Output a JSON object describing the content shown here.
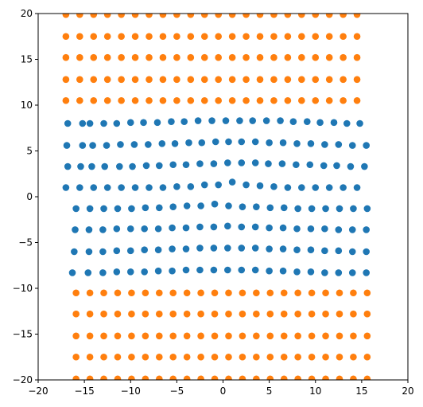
{
  "chart_data": {
    "type": "scatter",
    "title": "",
    "xlabel": "",
    "ylabel": "",
    "xlim": [
      -20,
      20
    ],
    "ylim": [
      -20,
      20
    ],
    "x_ticks": [
      -20,
      -15,
      -10,
      -5,
      0,
      5,
      10,
      15,
      20
    ],
    "y_ticks": [
      -20,
      -15,
      -10,
      -5,
      0,
      5,
      10,
      15,
      20
    ],
    "x_tick_labels": [
      "−20",
      "−15",
      "−10",
      "−5",
      "0",
      "5",
      "10",
      "15",
      "20"
    ],
    "y_tick_labels": [
      "−20",
      "−15",
      "−10",
      "−5",
      "0",
      "5",
      "10",
      "15",
      "20"
    ],
    "grid": false,
    "legend": "none",
    "series": [
      {
        "color": "#1f77b4",
        "rows": [
          {
            "x": [
              -16.8,
              -15.2,
              -14.4,
              -12.9,
              -11.5,
              -10.0,
              -8.6,
              -7.1,
              -5.6,
              -4.2,
              -2.7,
              -1.2,
              0.3,
              1.8,
              3.2,
              4.7,
              6.2,
              7.6,
              9.1,
              10.5,
              12.0,
              13.4,
              14.8
            ],
            "y": [
              8.0,
              8.0,
              8.0,
              8.0,
              8.0,
              8.1,
              8.1,
              8.1,
              8.2,
              8.2,
              8.3,
              8.3,
              8.3,
              8.3,
              8.3,
              8.3,
              8.3,
              8.2,
              8.2,
              8.1,
              8.1,
              8.0,
              8.0
            ]
          },
          {
            "x": [
              -16.9,
              -15.2,
              -14.1,
              -12.6,
              -11.1,
              -9.6,
              -8.1,
              -6.6,
              -5.2,
              -3.7,
              -2.3,
              -0.8,
              0.6,
              2.0,
              3.5,
              5.0,
              6.5,
              8.0,
              9.5,
              11.0,
              12.5,
              14.0,
              15.5
            ],
            "y": [
              5.6,
              5.6,
              5.6,
              5.6,
              5.7,
              5.7,
              5.7,
              5.8,
              5.8,
              5.9,
              5.9,
              6.0,
              6.0,
              6.0,
              6.0,
              5.9,
              5.9,
              5.8,
              5.8,
              5.7,
              5.7,
              5.6,
              5.6
            ]
          },
          {
            "x": [
              -16.8,
              -15.4,
              -14.2,
              -12.8,
              -11.2,
              -9.8,
              -8.3,
              -6.9,
              -5.4,
              -4.0,
              -2.5,
              -1.0,
              0.5,
              2.0,
              3.5,
              4.9,
              6.4,
              7.9,
              9.4,
              10.9,
              12.3,
              13.8,
              15.3
            ],
            "y": [
              3.3,
              3.3,
              3.3,
              3.3,
              3.3,
              3.3,
              3.4,
              3.4,
              3.5,
              3.5,
              3.6,
              3.6,
              3.7,
              3.7,
              3.7,
              3.6,
              3.6,
              3.5,
              3.5,
              3.4,
              3.4,
              3.3,
              3.3
            ]
          },
          {
            "x": [
              -17.0,
              -15.5,
              -14.0,
              -12.5,
              -11.0,
              -9.5,
              -8.0,
              -6.5,
              -5.0,
              -3.5,
              -2.0,
              -0.5,
              1.0,
              2.5,
              4.0,
              5.5,
              7.0,
              8.5,
              10.0,
              11.5,
              13.0,
              14.5
            ],
            "y": [
              1.0,
              1.0,
              1.0,
              1.0,
              1.0,
              1.0,
              1.0,
              1.0,
              1.1,
              1.1,
              1.3,
              1.3,
              1.6,
              1.3,
              1.2,
              1.1,
              1.0,
              1.0,
              1.0,
              1.0,
              1.0,
              1.0
            ]
          },
          {
            "x": [
              -15.9,
              -14.4,
              -12.9,
              -11.4,
              -9.9,
              -8.4,
              -6.9,
              -5.4,
              -3.9,
              -2.4,
              -0.9,
              0.6,
              2.1,
              3.6,
              5.1,
              6.6,
              8.1,
              9.6,
              11.1,
              12.6,
              14.1,
              15.6
            ],
            "y": [
              -1.3,
              -1.3,
              -1.3,
              -1.3,
              -1.3,
              -1.2,
              -1.2,
              -1.1,
              -1.0,
              -1.0,
              -0.8,
              -1.0,
              -1.1,
              -1.1,
              -1.2,
              -1.2,
              -1.3,
              -1.3,
              -1.3,
              -1.3,
              -1.3,
              -1.3
            ]
          },
          {
            "x": [
              -16.0,
              -14.5,
              -13.0,
              -11.5,
              -10.0,
              -8.5,
              -7.0,
              -5.5,
              -4.0,
              -2.5,
              -1.0,
              0.5,
              2.0,
              3.5,
              5.0,
              6.5,
              8.0,
              9.5,
              11.0,
              12.5,
              14.0,
              15.5
            ],
            "y": [
              -3.6,
              -3.6,
              -3.6,
              -3.5,
              -3.5,
              -3.5,
              -3.5,
              -3.4,
              -3.4,
              -3.3,
              -3.3,
              -3.2,
              -3.3,
              -3.3,
              -3.4,
              -3.4,
              -3.5,
              -3.5,
              -3.5,
              -3.6,
              -3.6,
              -3.6
            ]
          },
          {
            "x": [
              -16.1,
              -14.5,
              -13.0,
              -11.5,
              -10.0,
              -8.5,
              -7.0,
              -5.5,
              -4.0,
              -2.5,
              -1.0,
              0.5,
              2.0,
              3.5,
              5.0,
              6.5,
              8.0,
              9.5,
              11.0,
              12.5,
              14.0,
              15.5
            ],
            "y": [
              -6.0,
              -6.0,
              -6.0,
              -5.9,
              -5.9,
              -5.8,
              -5.8,
              -5.7,
              -5.7,
              -5.6,
              -5.6,
              -5.6,
              -5.6,
              -5.6,
              -5.7,
              -5.7,
              -5.8,
              -5.8,
              -5.9,
              -5.9,
              -6.0,
              -6.0
            ]
          },
          {
            "x": [
              -16.3,
              -14.6,
              -13.0,
              -11.5,
              -10.0,
              -8.5,
              -7.0,
              -5.5,
              -4.0,
              -2.5,
              -1.0,
              0.5,
              2.0,
              3.5,
              5.0,
              6.5,
              8.0,
              9.5,
              11.0,
              12.5,
              14.0,
              15.5
            ],
            "y": [
              -8.3,
              -8.3,
              -8.3,
              -8.2,
              -8.2,
              -8.2,
              -8.1,
              -8.1,
              -8.0,
              -8.0,
              -8.0,
              -8.0,
              -8.0,
              -8.0,
              -8.1,
              -8.1,
              -8.2,
              -8.2,
              -8.3,
              -8.3,
              -8.3,
              -8.3
            ]
          }
        ]
      },
      {
        "color": "#ff7f0e",
        "rows": [
          {
            "x": [
              -17.0,
              -15.5,
              -14.0,
              -12.5,
              -11.0,
              -9.5,
              -8.0,
              -6.5,
              -5.0,
              -3.5,
              -2.0,
              -0.5,
              1.0,
              2.5,
              4.0,
              5.5,
              7.0,
              8.5,
              10.0,
              11.5,
              13.0,
              14.5
            ],
            "y": [
              19.9,
              19.9,
              19.9,
              19.9,
              19.9,
              19.9,
              19.9,
              19.9,
              19.9,
              19.9,
              19.9,
              19.9,
              19.9,
              19.9,
              19.9,
              19.9,
              19.9,
              19.9,
              19.9,
              19.9,
              19.9,
              19.9
            ]
          },
          {
            "x": [
              -17.0,
              -15.5,
              -14.0,
              -12.5,
              -11.0,
              -9.5,
              -8.0,
              -6.5,
              -5.0,
              -3.5,
              -2.0,
              -0.5,
              1.0,
              2.5,
              4.0,
              5.5,
              7.0,
              8.5,
              10.0,
              11.5,
              13.0,
              14.5
            ],
            "y": [
              17.5,
              17.5,
              17.5,
              17.5,
              17.5,
              17.5,
              17.5,
              17.5,
              17.5,
              17.5,
              17.5,
              17.5,
              17.5,
              17.5,
              17.5,
              17.5,
              17.5,
              17.5,
              17.5,
              17.5,
              17.5,
              17.5
            ]
          },
          {
            "x": [
              -17.0,
              -15.5,
              -14.0,
              -12.5,
              -11.0,
              -9.5,
              -8.0,
              -6.5,
              -5.0,
              -3.5,
              -2.0,
              -0.5,
              1.0,
              2.5,
              4.0,
              5.5,
              7.0,
              8.5,
              10.0,
              11.5,
              13.0,
              14.5
            ],
            "y": [
              15.2,
              15.2,
              15.2,
              15.2,
              15.2,
              15.2,
              15.2,
              15.2,
              15.2,
              15.2,
              15.2,
              15.2,
              15.2,
              15.2,
              15.2,
              15.2,
              15.2,
              15.2,
              15.2,
              15.2,
              15.2,
              15.2
            ]
          },
          {
            "x": [
              -17.0,
              -15.5,
              -14.0,
              -12.5,
              -11.0,
              -9.5,
              -8.0,
              -6.5,
              -5.0,
              -3.5,
              -2.0,
              -0.5,
              1.0,
              2.5,
              4.0,
              5.5,
              7.0,
              8.5,
              10.0,
              11.5,
              13.0,
              14.5
            ],
            "y": [
              12.8,
              12.8,
              12.8,
              12.8,
              12.8,
              12.8,
              12.8,
              12.8,
              12.8,
              12.8,
              12.8,
              12.8,
              12.8,
              12.8,
              12.8,
              12.8,
              12.8,
              12.8,
              12.8,
              12.8,
              12.8,
              12.8
            ]
          },
          {
            "x": [
              -17.0,
              -15.5,
              -14.0,
              -12.5,
              -11.0,
              -9.5,
              -8.0,
              -6.5,
              -5.0,
              -3.5,
              -2.0,
              -0.5,
              1.0,
              2.5,
              4.0,
              5.5,
              7.0,
              8.5,
              10.0,
              11.5,
              13.0,
              14.5
            ],
            "y": [
              10.5,
              10.5,
              10.5,
              10.5,
              10.5,
              10.5,
              10.5,
              10.5,
              10.5,
              10.5,
              10.5,
              10.5,
              10.5,
              10.5,
              10.5,
              10.5,
              10.5,
              10.5,
              10.5,
              10.5,
              10.5,
              10.5
            ]
          },
          {
            "x": [
              -15.9,
              -14.4,
              -12.9,
              -11.4,
              -9.9,
              -8.4,
              -6.9,
              -5.4,
              -3.9,
              -2.4,
              -0.9,
              0.6,
              2.1,
              3.6,
              5.1,
              6.6,
              8.1,
              9.6,
              11.1,
              12.6,
              14.1,
              15.6
            ],
            "y": [
              -10.5,
              -10.5,
              -10.5,
              -10.5,
              -10.5,
              -10.5,
              -10.5,
              -10.5,
              -10.5,
              -10.5,
              -10.5,
              -10.5,
              -10.5,
              -10.5,
              -10.5,
              -10.5,
              -10.5,
              -10.5,
              -10.5,
              -10.5,
              -10.5,
              -10.5
            ]
          },
          {
            "x": [
              -15.9,
              -14.4,
              -12.9,
              -11.4,
              -9.9,
              -8.4,
              -6.9,
              -5.4,
              -3.9,
              -2.4,
              -0.9,
              0.6,
              2.1,
              3.6,
              5.1,
              6.6,
              8.1,
              9.6,
              11.1,
              12.6,
              14.1,
              15.6
            ],
            "y": [
              -12.8,
              -12.8,
              -12.8,
              -12.8,
              -12.8,
              -12.8,
              -12.8,
              -12.8,
              -12.8,
              -12.8,
              -12.8,
              -12.8,
              -12.8,
              -12.8,
              -12.8,
              -12.8,
              -12.8,
              -12.8,
              -12.8,
              -12.8,
              -12.8,
              -12.8
            ]
          },
          {
            "x": [
              -15.9,
              -14.4,
              -12.9,
              -11.4,
              -9.9,
              -8.4,
              -6.9,
              -5.4,
              -3.9,
              -2.4,
              -0.9,
              0.6,
              2.1,
              3.6,
              5.1,
              6.6,
              8.1,
              9.6,
              11.1,
              12.6,
              14.1,
              15.6
            ],
            "y": [
              -15.2,
              -15.2,
              -15.2,
              -15.2,
              -15.2,
              -15.2,
              -15.2,
              -15.2,
              -15.2,
              -15.2,
              -15.2,
              -15.2,
              -15.2,
              -15.2,
              -15.2,
              -15.2,
              -15.2,
              -15.2,
              -15.2,
              -15.2,
              -15.2,
              -15.2
            ]
          },
          {
            "x": [
              -15.9,
              -14.4,
              -12.9,
              -11.4,
              -9.9,
              -8.4,
              -6.9,
              -5.4,
              -3.9,
              -2.4,
              -0.9,
              0.6,
              2.1,
              3.6,
              5.1,
              6.6,
              8.1,
              9.6,
              11.1,
              12.6,
              14.1,
              15.6
            ],
            "y": [
              -17.5,
              -17.5,
              -17.5,
              -17.5,
              -17.5,
              -17.5,
              -17.5,
              -17.5,
              -17.5,
              -17.5,
              -17.5,
              -17.5,
              -17.5,
              -17.5,
              -17.5,
              -17.5,
              -17.5,
              -17.5,
              -17.5,
              -17.5,
              -17.5,
              -17.5
            ]
          },
          {
            "x": [
              -15.9,
              -14.4,
              -12.9,
              -11.4,
              -9.9,
              -8.4,
              -6.9,
              -5.4,
              -3.9,
              -2.4,
              -0.9,
              0.6,
              2.1,
              3.6,
              5.1,
              6.6,
              8.1,
              9.6,
              11.1,
              12.6,
              14.1,
              15.6
            ],
            "y": [
              -19.9,
              -19.9,
              -19.9,
              -19.9,
              -19.9,
              -19.9,
              -19.9,
              -19.9,
              -19.9,
              -19.9,
              -19.9,
              -19.9,
              -19.9,
              -19.9,
              -19.9,
              -19.9,
              -19.9,
              -19.9,
              -19.9,
              -19.9,
              -19.9,
              -19.9
            ]
          }
        ]
      }
    ]
  }
}
